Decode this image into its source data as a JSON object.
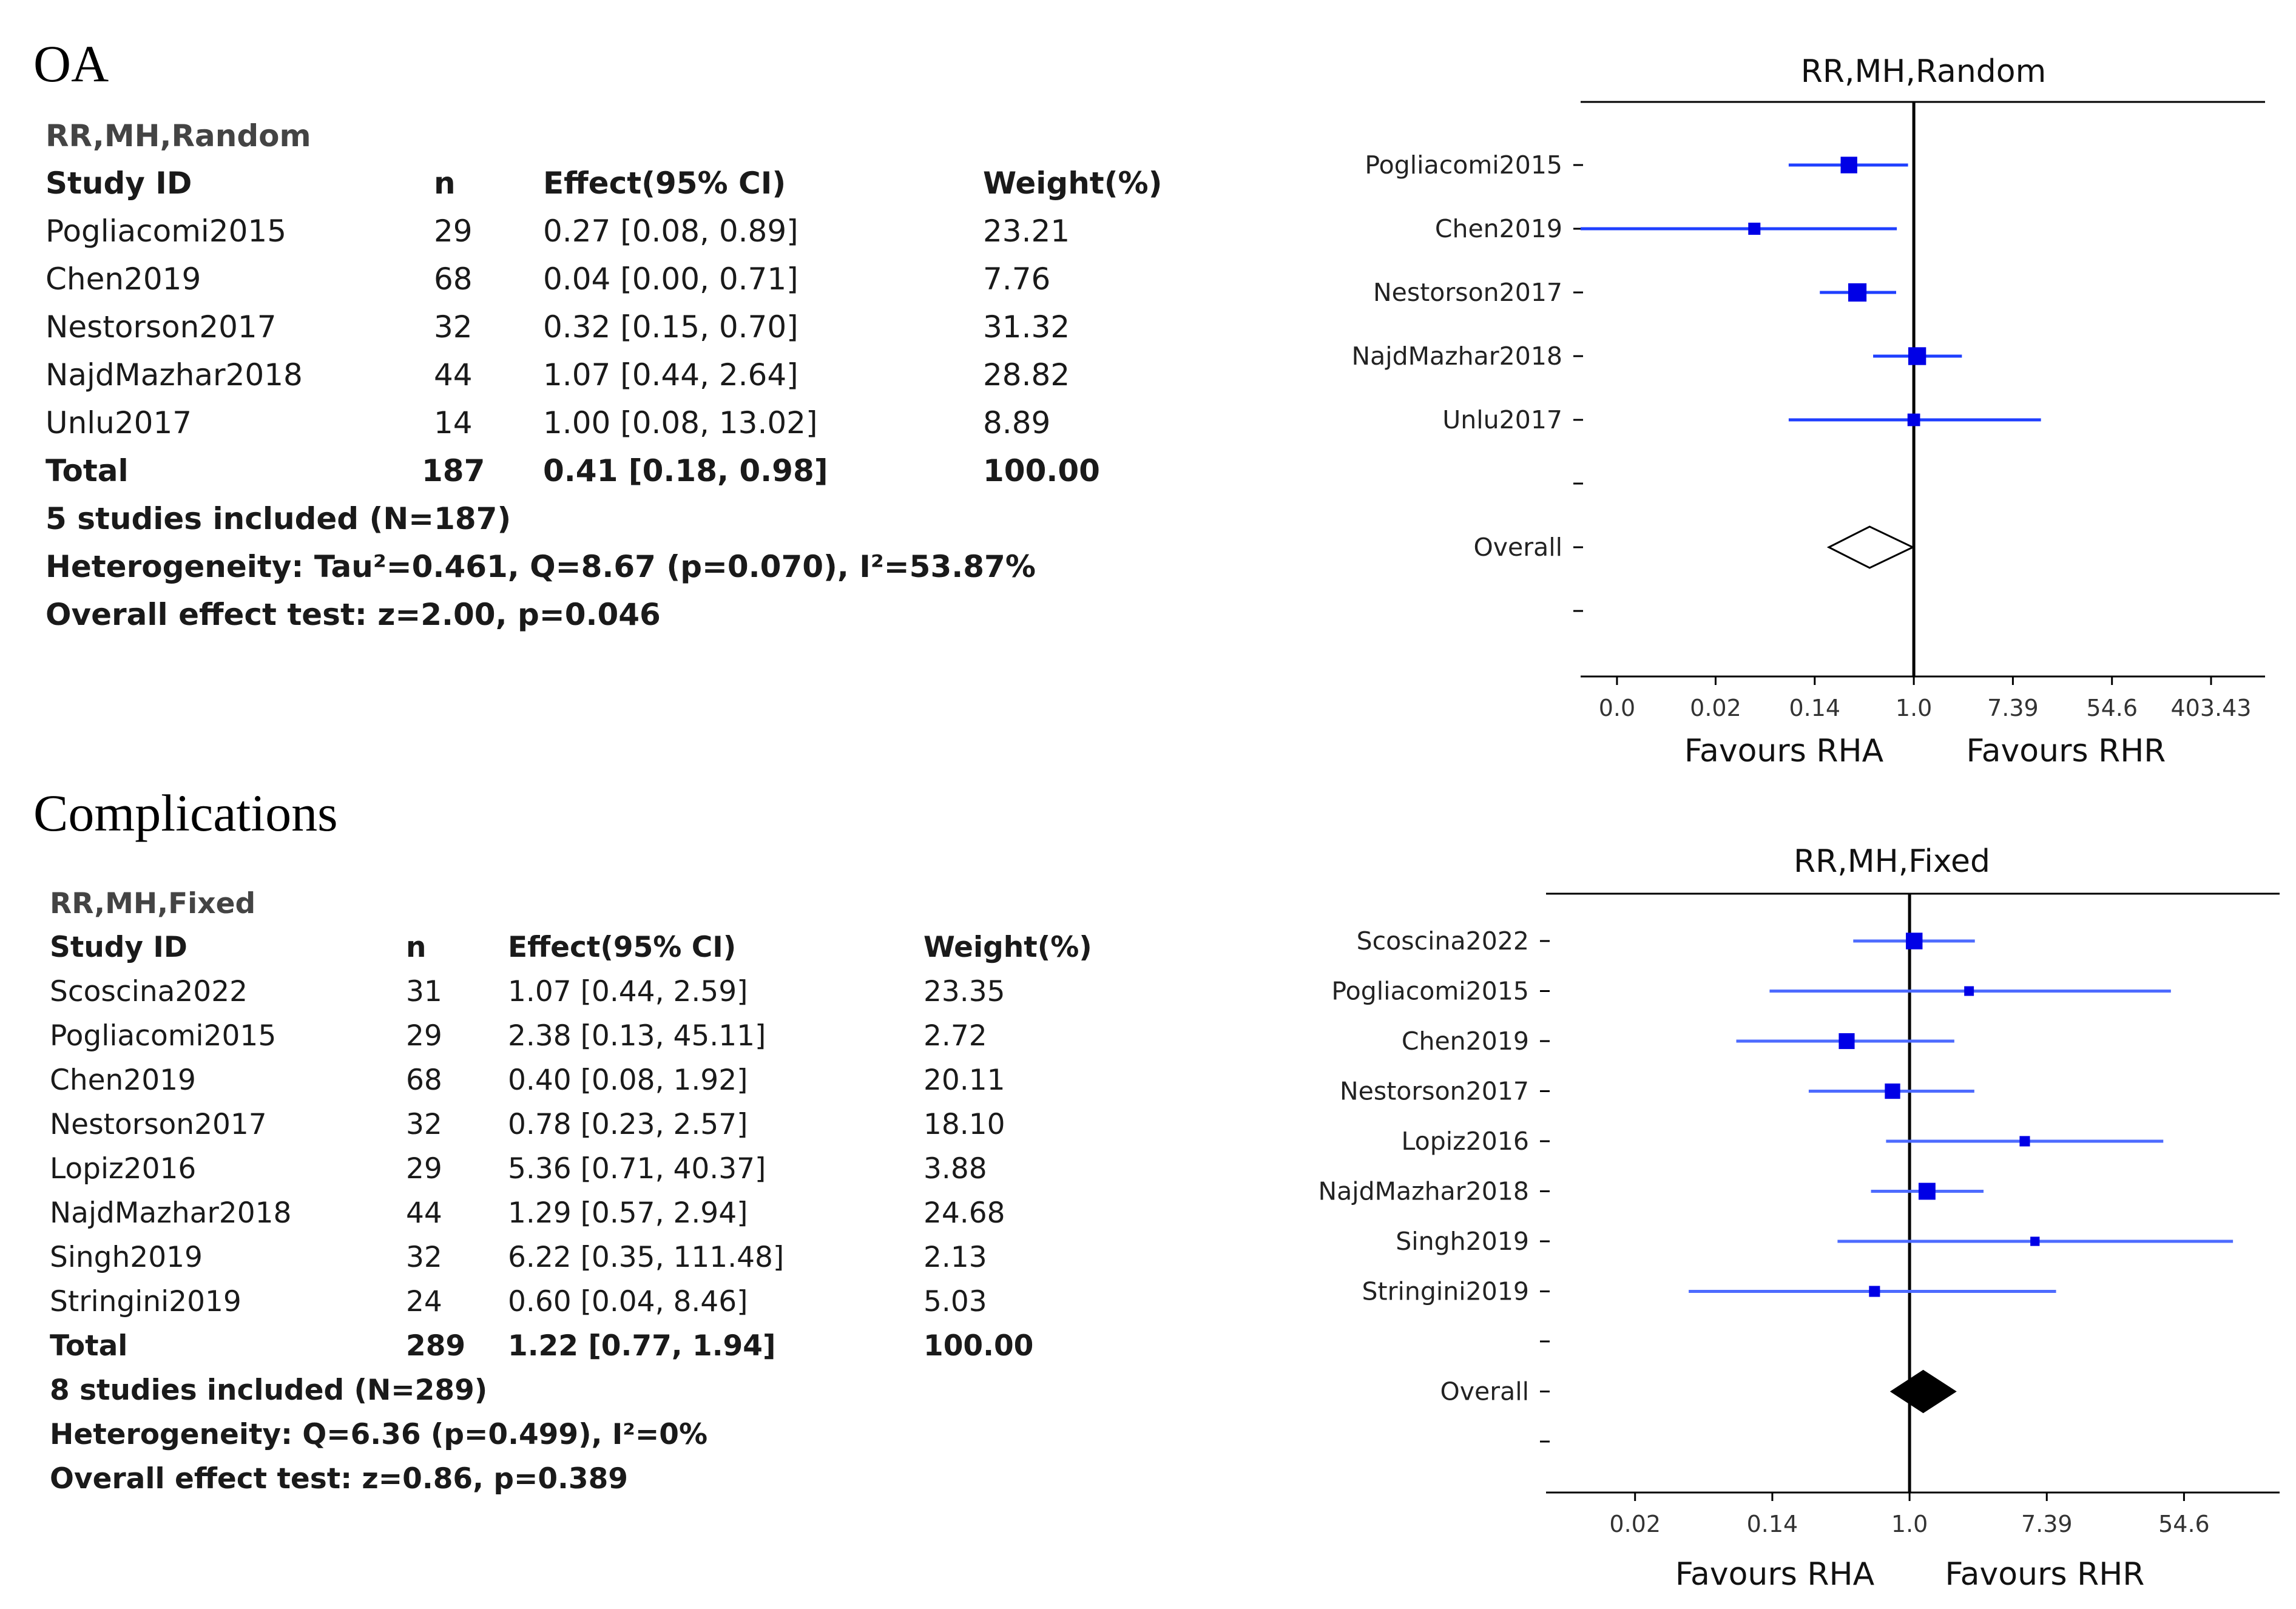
{
  "sections": [
    {
      "title": "OA",
      "table": {
        "model": "RR,MH,Random",
        "headers": {
          "study": "Study ID",
          "n": "n",
          "effect": "Effect(95% CI)",
          "weight": "Weight(%)"
        },
        "rows": [
          {
            "study": "Pogliacomi2015",
            "n": "29",
            "effect": "0.27 [0.08, 0.89]",
            "weight": "23.21"
          },
          {
            "study": "Chen2019",
            "n": "68",
            "effect": "0.04 [0.00, 0.71]",
            "weight": "7.76"
          },
          {
            "study": "Nestorson2017",
            "n": "32",
            "effect": "0.32 [0.15, 0.70]",
            "weight": "31.32"
          },
          {
            "study": "NajdMazhar2018",
            "n": "44",
            "effect": "1.07 [0.44, 2.64]",
            "weight": "28.82"
          },
          {
            "study": "Unlu2017",
            "n": "14",
            "effect": "1.00 [0.08, 13.02]",
            "weight": "8.89"
          }
        ],
        "total": {
          "study": "Total",
          "n": "187",
          "effect": "0.41 [0.18, 0.98]",
          "weight": "100.00"
        },
        "summary": [
          "5 studies included (N=187)",
          "Heterogeneity: Tau²=0.461, Q=8.67 (p=0.070), I²=53.87%",
          "Overall effect test: z=2.00, p=0.046"
        ]
      }
    },
    {
      "title": "Complications",
      "table": {
        "model": "RR,MH,Fixed",
        "headers": {
          "study": "Study ID",
          "n": "n",
          "effect": "Effect(95% CI)",
          "weight": "Weight(%)"
        },
        "rows": [
          {
            "study": "Scoscina2022",
            "n": "31",
            "effect": "1.07 [0.44, 2.59]",
            "weight": "23.35"
          },
          {
            "study": "Pogliacomi2015",
            "n": "29",
            "effect": "2.38 [0.13, 45.11]",
            "weight": "2.72"
          },
          {
            "study": "Chen2019",
            "n": "68",
            "effect": "0.40 [0.08, 1.92]",
            "weight": "20.11"
          },
          {
            "study": "Nestorson2017",
            "n": "32",
            "effect": "0.78 [0.23, 2.57]",
            "weight": "18.10"
          },
          {
            "study": "Lopiz2016",
            "n": "29",
            "effect": "5.36 [0.71, 40.37]",
            "weight": "3.88"
          },
          {
            "study": "NajdMazhar2018",
            "n": "44",
            "effect": "1.29 [0.57, 2.94]",
            "weight": "24.68"
          },
          {
            "study": "Singh2019",
            "n": "32",
            "effect": "6.22 [0.35, 111.48]",
            "weight": "2.13"
          },
          {
            "study": "Stringini2019",
            "n": "24",
            "effect": "0.60 [0.04, 8.46]",
            "weight": "5.03"
          }
        ],
        "total": {
          "study": "Total",
          "n": "289",
          "effect": "1.22 [0.77, 1.94]",
          "weight": "100.00"
        },
        "summary": [
          "8 studies included (N=289)",
          "Heterogeneity: Q=6.36 (p=0.499), I²=0%",
          "Overall effect test: z=0.86, p=0.389"
        ]
      }
    }
  ],
  "chart_data": [
    {
      "type": "forest",
      "title": "RR,MH,Random",
      "x_scale": "log",
      "x_ticks": [
        "0.0",
        "0.02",
        "0.14",
        "1.0",
        "7.39",
        "54.6",
        "403.43"
      ],
      "x_tick_values": [
        0.0025,
        0.0183,
        0.1353,
        1.0,
        7.389,
        54.6,
        403.43
      ],
      "xlim": [
        0.0012,
        1200
      ],
      "xlabels": [
        "Favours RHA",
        "Favours RHR"
      ],
      "reference_line": 1.0,
      "studies": [
        {
          "label": "Pogliacomi2015",
          "effect": 0.27,
          "lower": 0.08,
          "upper": 0.89,
          "weight": 23.21
        },
        {
          "label": "Chen2019",
          "effect": 0.04,
          "lower": 0.0,
          "upper": 0.71,
          "weight": 7.76
        },
        {
          "label": "Nestorson2017",
          "effect": 0.32,
          "lower": 0.15,
          "upper": 0.7,
          "weight": 31.32
        },
        {
          "label": "NajdMazhar2018",
          "effect": 1.07,
          "lower": 0.44,
          "upper": 2.64,
          "weight": 28.82
        },
        {
          "label": "Unlu2017",
          "effect": 1.0,
          "lower": 0.08,
          "upper": 13.02,
          "weight": 8.89
        }
      ],
      "overall": {
        "label": "Overall",
        "effect": 0.41,
        "lower": 0.18,
        "upper": 0.98,
        "filled": false
      },
      "colors": {
        "ci": "#1f3fff",
        "marker": "#0000e6",
        "axis": "#000000"
      }
    },
    {
      "type": "forest",
      "title": "RR,MH,Fixed",
      "x_scale": "log",
      "x_ticks": [
        "0.02",
        "0.14",
        "1.0",
        "7.39",
        "54.6"
      ],
      "x_tick_values": [
        0.0183,
        0.1353,
        1.0,
        7.389,
        54.6
      ],
      "xlim": [
        0.005,
        220
      ],
      "xlabels": [
        "Favours RHA",
        "Favours RHR"
      ],
      "reference_line": 1.0,
      "studies": [
        {
          "label": "Scoscina2022",
          "effect": 1.07,
          "lower": 0.44,
          "upper": 2.59,
          "weight": 23.35
        },
        {
          "label": "Pogliacomi2015",
          "effect": 2.38,
          "lower": 0.13,
          "upper": 45.11,
          "weight": 2.72
        },
        {
          "label": "Chen2019",
          "effect": 0.4,
          "lower": 0.08,
          "upper": 1.92,
          "weight": 20.11
        },
        {
          "label": "Nestorson2017",
          "effect": 0.78,
          "lower": 0.23,
          "upper": 2.57,
          "weight": 18.1
        },
        {
          "label": "Lopiz2016",
          "effect": 5.36,
          "lower": 0.71,
          "upper": 40.37,
          "weight": 3.88
        },
        {
          "label": "NajdMazhar2018",
          "effect": 1.29,
          "lower": 0.57,
          "upper": 2.94,
          "weight": 24.68
        },
        {
          "label": "Singh2019",
          "effect": 6.22,
          "lower": 0.35,
          "upper": 111.48,
          "weight": 2.13
        },
        {
          "label": "Stringini2019",
          "effect": 0.6,
          "lower": 0.04,
          "upper": 8.46,
          "weight": 5.03
        }
      ],
      "overall": {
        "label": "Overall",
        "effect": 1.22,
        "lower": 0.77,
        "upper": 1.94,
        "filled": true
      },
      "colors": {
        "ci": "#4d6bff",
        "marker": "#0000e6",
        "axis": "#000000"
      }
    }
  ]
}
